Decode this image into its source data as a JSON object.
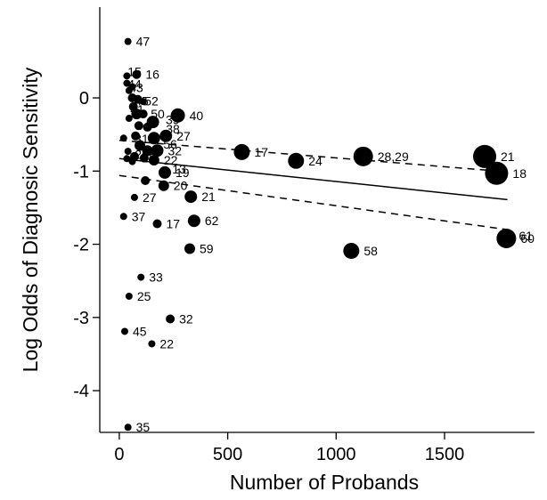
{
  "chart_data": {
    "type": "scatter",
    "xlabel": "Number of Probands",
    "ylabel": "Log Odds of Diagnosic Sensitivity",
    "xlim": [
      -90,
      1915
    ],
    "ylim": [
      -4.57,
      1.24
    ],
    "xticks": [
      0,
      500,
      1000,
      1500
    ],
    "yticks": [
      0,
      -1,
      -2,
      -3,
      -4
    ],
    "grid": false,
    "points": [
      {
        "x": 40,
        "y": 0.77,
        "label": "47",
        "size": 4
      },
      {
        "x": 35,
        "y": 0.3,
        "label": "",
        "size": 4
      },
      {
        "x": 80,
        "y": 0.32,
        "label": "16",
        "size": 5
      },
      {
        "x": 35,
        "y": 0.2,
        "label": "",
        "size": 4
      },
      {
        "x": 60,
        "y": 0.15,
        "label": "",
        "size": 4
      },
      {
        "x": 45,
        "y": 0.1,
        "label": "",
        "size": 4
      },
      {
        "x": 60,
        "y": 0.0,
        "label": "",
        "size": 5
      },
      {
        "x": 85,
        "y": -0.02,
        "label": "",
        "size": 5
      },
      {
        "x": 110,
        "y": -0.05,
        "label": "",
        "size": 4
      },
      {
        "x": 65,
        "y": -0.12,
        "label": "",
        "size": 5
      },
      {
        "x": 80,
        "y": -0.22,
        "label": "",
        "size": 6
      },
      {
        "x": 110,
        "y": -0.22,
        "label": "",
        "size": 5
      },
      {
        "x": 45,
        "y": -0.28,
        "label": "",
        "size": 4
      },
      {
        "x": 270,
        "y": -0.24,
        "label": "40",
        "size": 8
      },
      {
        "x": 155,
        "y": -0.33,
        "label": "",
        "size": 7
      },
      {
        "x": 90,
        "y": -0.38,
        "label": "",
        "size": 5
      },
      {
        "x": 130,
        "y": -0.4,
        "label": "",
        "size": 5
      },
      {
        "x": 75,
        "y": -0.52,
        "label": "",
        "size": 5
      },
      {
        "x": 160,
        "y": -0.55,
        "label": "",
        "size": 7
      },
      {
        "x": 215,
        "y": -0.52,
        "label": "27",
        "size": 7
      },
      {
        "x": 20,
        "y": -0.55,
        "label": "",
        "size": 4
      },
      {
        "x": 95,
        "y": -0.65,
        "label": "",
        "size": 6
      },
      {
        "x": 130,
        "y": -0.72,
        "label": "",
        "size": 6
      },
      {
        "x": 175,
        "y": -0.72,
        "label": "32",
        "size": 7
      },
      {
        "x": 40,
        "y": -0.73,
        "label": "",
        "size": 4
      },
      {
        "x": 70,
        "y": -0.8,
        "label": "",
        "size": 5
      },
      {
        "x": 115,
        "y": -0.82,
        "label": "",
        "size": 5
      },
      {
        "x": 160,
        "y": -0.85,
        "label": "22",
        "size": 6
      },
      {
        "x": 60,
        "y": -0.87,
        "label": "",
        "size": 4
      },
      {
        "x": 35,
        "y": -0.83,
        "label": "",
        "size": 4
      },
      {
        "x": 210,
        "y": -1.02,
        "label": "19",
        "size": 7
      },
      {
        "x": 120,
        "y": -1.13,
        "label": "",
        "size": 5
      },
      {
        "x": 205,
        "y": -1.2,
        "label": "20",
        "size": 6
      },
      {
        "x": 70,
        "y": -1.36,
        "label": "27",
        "size": 4
      },
      {
        "x": 330,
        "y": -1.35,
        "label": "21",
        "size": 7
      },
      {
        "x": 20,
        "y": -1.62,
        "label": "37",
        "size": 4
      },
      {
        "x": 175,
        "y": -1.72,
        "label": "17",
        "size": 5
      },
      {
        "x": 345,
        "y": -1.68,
        "label": "62",
        "size": 7
      },
      {
        "x": 325,
        "y": -2.06,
        "label": "59",
        "size": 6
      },
      {
        "x": 100,
        "y": -2.45,
        "label": "33",
        "size": 4
      },
      {
        "x": 45,
        "y": -2.71,
        "label": "25",
        "size": 4
      },
      {
        "x": 235,
        "y": -3.02,
        "label": "32",
        "size": 5
      },
      {
        "x": 25,
        "y": -3.19,
        "label": "45",
        "size": 4
      },
      {
        "x": 150,
        "y": -3.36,
        "label": "22",
        "size": 4
      },
      {
        "x": 40,
        "y": -4.5,
        "label": "35",
        "size": 4
      },
      {
        "x": 565,
        "y": -0.74,
        "label": "17",
        "size": 9
      },
      {
        "x": 815,
        "y": -0.86,
        "label": "24",
        "size": 9
      },
      {
        "x": 1125,
        "y": -0.8,
        "label": "28,29",
        "size": 11
      },
      {
        "x": 1685,
        "y": -0.8,
        "label": "21",
        "size": 13
      },
      {
        "x": 1740,
        "y": -1.03,
        "label": "18",
        "size": 13
      },
      {
        "x": 1070,
        "y": -2.09,
        "label": "58",
        "size": 9
      },
      {
        "x": 1785,
        "y": -1.92,
        "label": "60",
        "size": 11
      }
    ],
    "extra_labels": [
      {
        "x": 63,
        "y": 0.32,
        "text": "15",
        "dx": -6,
        "dy": -3
      },
      {
        "x": 63,
        "y": 0.25,
        "text": "44",
        "dx": -6,
        "dy": 5
      },
      {
        "x": 63,
        "y": 0.14,
        "text": "43",
        "dx": -4,
        "dy": 0
      },
      {
        "x": 63,
        "y": -0.02,
        "text": "45",
        "dx": 2,
        "dy": 2
      },
      {
        "x": 63,
        "y": -0.02,
        "text": "52",
        "dx": 13,
        "dy": 2
      },
      {
        "x": 63,
        "y": -0.12,
        "text": "41",
        "dx": -3,
        "dy": 3
      },
      {
        "x": 140,
        "y": -0.3,
        "text": "39",
        "dx": 18,
        "dy": 0
      },
      {
        "x": 63,
        "y": -0.22,
        "text": "50",
        "dx": 20,
        "dy": 0
      },
      {
        "x": 63,
        "y": -0.4,
        "text": "38",
        "dx": 37,
        "dy": 2
      },
      {
        "x": 63,
        "y": -0.52,
        "text": "31",
        "dx": 2,
        "dy": 3
      },
      {
        "x": 63,
        "y": -0.63,
        "text": "56",
        "dx": 34,
        "dy": 0
      },
      {
        "x": 63,
        "y": -0.72,
        "text": "26",
        "dx": 2,
        "dy": 4
      },
      {
        "x": 63,
        "y": -0.82,
        "text": "23",
        "dx": 10,
        "dy": 0
      },
      {
        "x": 63,
        "y": -1.02,
        "text": "13",
        "dx": 44,
        "dy": -4
      },
      {
        "x": 1785,
        "y": -1.92,
        "text": "61",
        "dx": 14,
        "dy": -3
      }
    ],
    "fit_line": {
      "x": [
        0,
        1790
      ],
      "y": [
        -0.83,
        -1.39
      ]
    },
    "ci_upper": {
      "x": [
        0,
        1790
      ],
      "y": [
        -0.58,
        -1.01
      ]
    },
    "ci_lower": {
      "x": [
        0,
        1790
      ],
      "y": [
        -1.06,
        -1.8
      ]
    }
  }
}
